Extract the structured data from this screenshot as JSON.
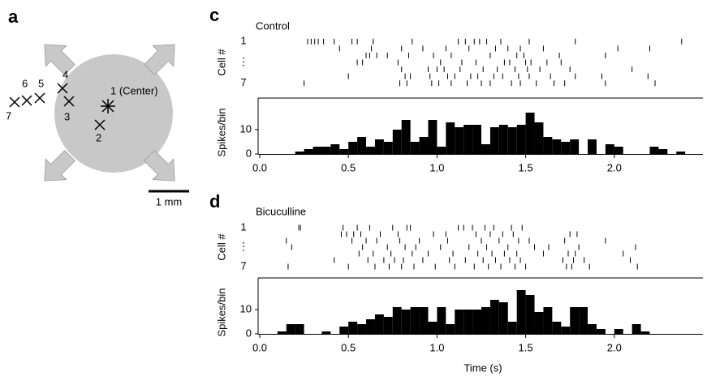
{
  "diagram": {
    "label": "a",
    "center_label": "1 (Center)",
    "electrodes": [
      "2",
      "3",
      "4",
      "5",
      "6",
      "7"
    ],
    "scale_bar": "1 mm"
  },
  "chart_data": [
    {
      "type": "raster",
      "label": "c",
      "title": "Control",
      "ylabel": "Cell #",
      "color": "#000000",
      "xlim": [
        0,
        2.5
      ],
      "ylim": [
        7.5,
        0.5
      ],
      "yticks": [
        1,
        {
          "value": 4,
          "label": "⋮"
        },
        7
      ],
      "spikes": [
        [
          0.27,
          0.29,
          0.31,
          0.33,
          0.36,
          0.42,
          0.52,
          0.55,
          0.64,
          0.86,
          1.12,
          1.16,
          1.21,
          1.24,
          1.28,
          1.36,
          1.52,
          1.78,
          2.38
        ],
        [
          0.45,
          0.63,
          0.8,
          0.92,
          1.05,
          1.18,
          1.33,
          1.4,
          1.47,
          1.6,
          2.02,
          2.2
        ],
        [
          0.6,
          0.62,
          0.66,
          0.72,
          0.84,
          0.98,
          1.08,
          1.3,
          1.45,
          1.49,
          1.69,
          1.95
        ],
        [
          0.55,
          0.58,
          0.78,
          1.02,
          1.14,
          1.22,
          1.38,
          1.41,
          1.5,
          1.53,
          1.62,
          1.7
        ],
        [
          0.8,
          0.95,
          1.0,
          1.04,
          1.13,
          1.26,
          1.34,
          1.44,
          1.51,
          1.58,
          1.75,
          2.1
        ],
        [
          0.5,
          0.82,
          0.85,
          0.96,
          1.06,
          1.1,
          1.19,
          1.23,
          1.32,
          1.37,
          1.46,
          1.52,
          1.64,
          1.78,
          1.93,
          2.19
        ],
        [
          0.25,
          0.79,
          0.83,
          0.97,
          1.01,
          1.08,
          1.17,
          1.25,
          1.3,
          1.42,
          1.47,
          1.56,
          1.66,
          1.72,
          1.95,
          2.23
        ]
      ]
    },
    {
      "type": "histogram",
      "ylabel": "Spikes/bin",
      "color": "#000000",
      "xlim": [
        0,
        2.5
      ],
      "ylim": [
        0,
        23
      ],
      "xticks": [
        {
          "value": 0,
          "label": "0.0"
        },
        0.5,
        {
          "value": 1,
          "label": "1.0"
        },
        1.5,
        {
          "value": 2,
          "label": "2.0"
        }
      ],
      "yticks": [
        0,
        10
      ],
      "bins": [
        0.2,
        0.25,
        0.3,
        0.35,
        0.4,
        0.45,
        0.5,
        0.55,
        0.6,
        0.65,
        0.7,
        0.75,
        0.8,
        0.85,
        0.9,
        0.95,
        1.0,
        1.05,
        1.1,
        1.15,
        1.2,
        1.25,
        1.3,
        1.35,
        1.4,
        1.45,
        1.5,
        1.55,
        1.6,
        1.65,
        1.7,
        1.75,
        1.8,
        1.85,
        1.9,
        1.95,
        2.0,
        2.05,
        2.1,
        2.15,
        2.2,
        2.25,
        2.3,
        2.35,
        2.4
      ],
      "values": [
        1,
        2,
        3,
        3,
        4,
        2,
        5,
        7,
        3,
        6,
        5,
        10,
        14,
        5,
        7,
        14,
        3,
        13,
        11,
        12,
        12,
        4,
        11,
        12,
        11,
        12,
        17,
        13,
        7,
        6,
        5,
        6,
        0,
        6,
        0,
        4,
        3,
        0,
        0,
        0,
        3,
        2,
        0,
        1
      ]
    },
    {
      "type": "raster",
      "label": "d",
      "title": "Bicuculline",
      "ylabel": "Cell #",
      "color": "#000000",
      "xlim": [
        0,
        2.5
      ],
      "ylim": [
        7.5,
        0.5
      ],
      "yticks": [
        1,
        {
          "value": 4,
          "label": "⋮"
        },
        7
      ],
      "spikes": [
        [
          0.22,
          0.23,
          0.47,
          0.55,
          0.62,
          0.75,
          0.83,
          0.85,
          1.12,
          1.15,
          1.2,
          1.27,
          1.32,
          1.42,
          1.48
        ],
        [
          0.46,
          0.49,
          0.53,
          0.57,
          0.68,
          0.78,
          0.98,
          1.05,
          1.22,
          1.3,
          1.37,
          1.43,
          1.75,
          1.79
        ],
        [
          0.15,
          0.52,
          0.6,
          0.66,
          0.79,
          0.9,
          1.06,
          1.25,
          1.35,
          1.46,
          1.52,
          1.72,
          1.95
        ],
        [
          0.18,
          0.58,
          0.72,
          0.82,
          0.88,
          1.02,
          1.18,
          1.28,
          1.4,
          1.55,
          1.63,
          1.8,
          2.12
        ],
        [
          0.56,
          0.64,
          0.74,
          0.86,
          0.95,
          1.09,
          1.23,
          1.31,
          1.38,
          1.45,
          1.6,
          1.74,
          1.78,
          2.05
        ],
        [
          0.42,
          0.61,
          0.7,
          0.76,
          0.81,
          0.92,
          1.07,
          1.16,
          1.26,
          1.33,
          1.41,
          1.47,
          1.71,
          1.77,
          1.83,
          2.09
        ],
        [
          0.16,
          0.5,
          0.65,
          0.73,
          0.8,
          0.87,
          0.99,
          1.1,
          1.21,
          1.29,
          1.36,
          1.44,
          1.5,
          1.73,
          1.76,
          1.86,
          2.13
        ]
      ]
    },
    {
      "type": "histogram",
      "ylabel": "Spikes/bin",
      "xlabel": "Time (s)",
      "color": "#000000",
      "xlim": [
        0,
        2.5
      ],
      "ylim": [
        0,
        23
      ],
      "xticks": [
        {
          "value": 0,
          "label": "0.0"
        },
        0.5,
        {
          "value": 1,
          "label": "1.0"
        },
        1.5,
        {
          "value": 2,
          "label": "2.0"
        }
      ],
      "yticks": [
        0,
        10
      ],
      "bins": [
        0.1,
        0.15,
        0.2,
        0.25,
        0.3,
        0.35,
        0.4,
        0.45,
        0.5,
        0.55,
        0.6,
        0.65,
        0.7,
        0.75,
        0.8,
        0.85,
        0.9,
        0.95,
        1.0,
        1.05,
        1.1,
        1.15,
        1.2,
        1.25,
        1.3,
        1.35,
        1.4,
        1.45,
        1.5,
        1.55,
        1.6,
        1.65,
        1.7,
        1.75,
        1.8,
        1.85,
        1.9,
        1.95,
        2.0,
        2.05,
        2.1,
        2.15,
        2.2
      ],
      "values": [
        1,
        4,
        4,
        0,
        0,
        1,
        0,
        3,
        5,
        4,
        6,
        8,
        7,
        11,
        10,
        11,
        11,
        5,
        11,
        4,
        10,
        10,
        10,
        11,
        14,
        13,
        5,
        18,
        16,
        9,
        11,
        5,
        3,
        11,
        11,
        4,
        2,
        0,
        2,
        0,
        4,
        1
      ]
    }
  ]
}
